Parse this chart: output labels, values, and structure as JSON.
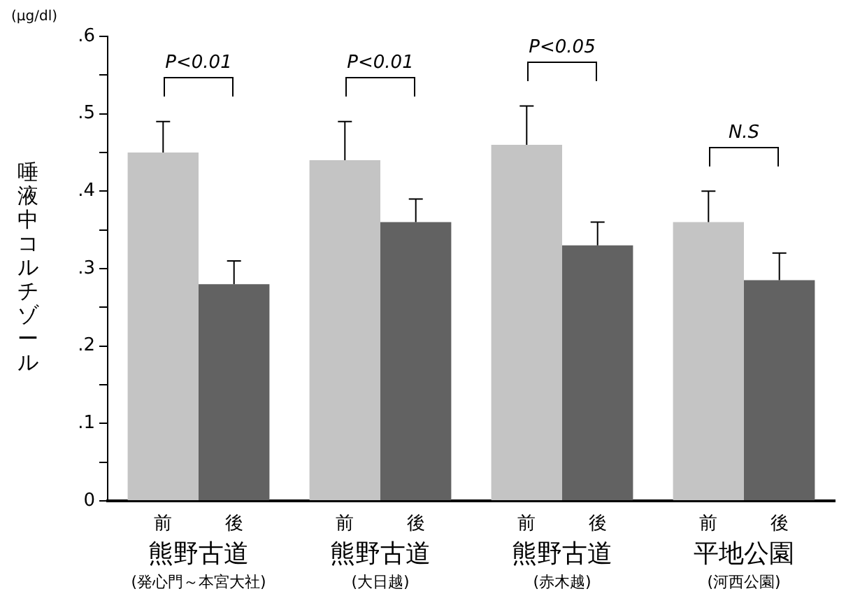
{
  "chart_data": {
    "type": "bar",
    "ylabel": "唾液中コルチゾール",
    "categories": [
      "熊野古道\n(発心門～本宮大社)",
      "熊野古道\n(大日越)",
      "熊野古道\n(赤木越)",
      "平地公園\n(河西公園)"
    ],
    "series": [
      {
        "name": "前",
        "color": "#c4c4c4",
        "values": [
          0.45,
          0.44,
          0.46,
          0.36
        ],
        "errors": [
          [
            0.45,
            0.49
          ],
          [
            0.44,
            0.49
          ],
          [
            0.46,
            0.51
          ],
          [
            0.36,
            0.4
          ]
        ]
      },
      {
        "name": "後",
        "color": "#626262",
        "values": [
          0.28,
          0.36,
          0.33,
          0.285
        ],
        "errors": [
          [
            0.28,
            0.31
          ],
          [
            0.36,
            0.39
          ],
          [
            0.33,
            0.36
          ],
          [
            0.285,
            0.32
          ]
        ]
      }
    ],
    "ylim": [
      0,
      0.6
    ],
    "yticks": [
      0,
      {
        "value": 0.05,
        "label": null
      },
      {
        "value": 0.1,
        "label": ".1"
      },
      {
        "value": 0.15,
        "label": null
      },
      {
        "value": 0.2,
        "label": ".2"
      },
      {
        "value": 0.25,
        "label": null
      },
      {
        "value": 0.3,
        "label": ".3"
      },
      {
        "value": 0.35,
        "label": null
      },
      {
        "value": 0.4,
        "label": ".4"
      },
      {
        "value": 0.45,
        "label": null
      },
      {
        "value": 0.5,
        "label": ".5"
      },
      {
        "value": 0.55,
        "label": null
      },
      {
        "value": 0.6,
        "label": ".6"
      }
    ],
    "annotations": [
      "(μg/dl)",
      "P<0.01",
      "P<0.01",
      "P<0.05",
      "N.S"
    ],
    "grid": false,
    "legend": false
  }
}
